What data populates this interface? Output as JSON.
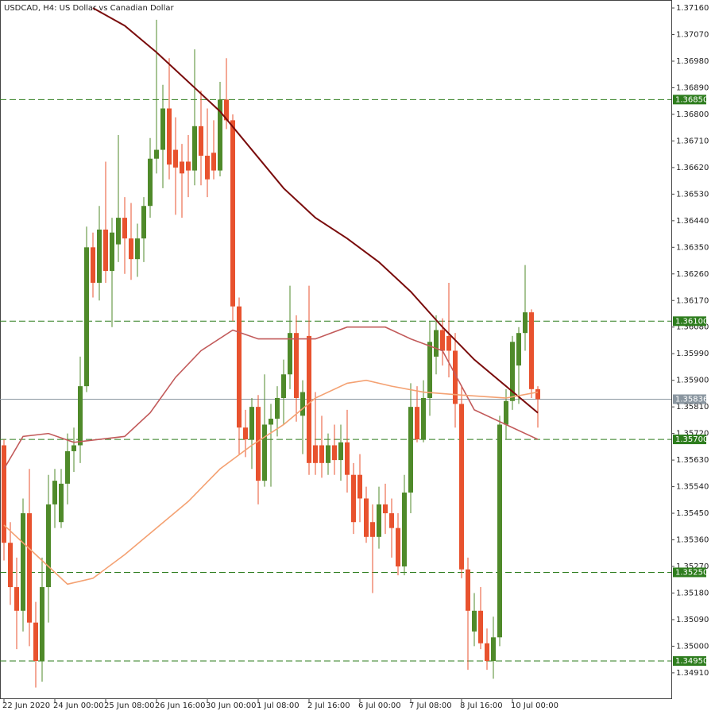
{
  "chart_data": {
    "type": "candlestick",
    "title": "USDCAD, H4:  US Dollar vs Canadian Dollar",
    "up_color": "#4f8a2a",
    "down_color": "#e8522e",
    "open": [
      1.3568,
      1.3535,
      1.352,
      1.3512,
      1.3545,
      1.3508,
      1.3495,
      1.352,
      1.3548,
      1.3542,
      1.3555,
      1.3566,
      1.3568,
      1.3588,
      1.3635,
      1.3623,
      1.3641,
      1.3627,
      1.3636,
      1.3645,
      1.3638,
      1.3631,
      1.3638,
      1.3649,
      1.3665,
      1.3668,
      1.3682,
      1.3668,
      1.3664,
      1.3664,
      1.3661,
      1.3676,
      1.3666,
      1.3667,
      1.3661,
      1.3685,
      1.3678,
      1.3615,
      1.3574,
      1.357,
      1.3581,
      1.3556,
      1.3575,
      1.3577,
      1.3584,
      1.3592,
      1.3606,
      1.3578,
      1.3605,
      1.3568,
      1.3568,
      1.3562,
      1.3568,
      1.3563,
      1.3569,
      1.3558,
      1.3558,
      1.355,
      1.3542,
      1.3537,
      1.3548,
      1.3545,
      1.354,
      1.3527,
      1.3552,
      1.3581,
      1.357,
      1.3584,
      1.3598,
      1.3607,
      1.3605,
      1.36,
      1.3582,
      1.3526,
      1.3505,
      1.3512,
      1.3501,
      1.3495,
      1.3503,
      1.3575,
      1.3583,
      1.3595,
      1.3606,
      1.3613,
      1.3587
    ],
    "high": [
      1.357,
      1.3542,
      1.353,
      1.355,
      1.356,
      1.3515,
      1.353,
      1.3558,
      1.356,
      1.356,
      1.3572,
      1.3574,
      1.3598,
      1.3642,
      1.364,
      1.3649,
      1.3664,
      1.3645,
      1.3673,
      1.3652,
      1.365,
      1.3643,
      1.3652,
      1.3672,
      1.3712,
      1.369,
      1.3699,
      1.3679,
      1.367,
      1.3673,
      1.3702,
      1.3688,
      1.3682,
      1.3678,
      1.3691,
      1.3699,
      1.368,
      1.3618,
      1.358,
      1.3584,
      1.3585,
      1.3592,
      1.3582,
      1.3588,
      1.3597,
      1.3622,
      1.3612,
      1.359,
      1.3622,
      1.3586,
      1.3578,
      1.3572,
      1.3575,
      1.3575,
      1.358,
      1.3562,
      1.3565,
      1.3554,
      1.3548,
      1.3554,
      1.3555,
      1.355,
      1.3545,
      1.3558,
      1.3589,
      1.3588,
      1.359,
      1.361,
      1.3612,
      1.3611,
      1.3623,
      1.3606,
      1.3588,
      1.353,
      1.3518,
      1.352,
      1.3506,
      1.351,
      1.3578,
      1.3587,
      1.3605,
      1.3608,
      1.3629,
      1.3614,
      1.3588
    ],
    "low": [
      1.3529,
      1.3514,
      1.3499,
      1.3505,
      1.35,
      1.3486,
      1.3488,
      1.3508,
      1.354,
      1.354,
      1.3548,
      1.3559,
      1.3562,
      1.3586,
      1.3618,
      1.3617,
      1.3623,
      1.3608,
      1.363,
      1.3626,
      1.3624,
      1.3625,
      1.363,
      1.3645,
      1.366,
      1.3655,
      1.3658,
      1.3646,
      1.3645,
      1.3652,
      1.3656,
      1.3656,
      1.3652,
      1.3658,
      1.3659,
      1.3675,
      1.361,
      1.3565,
      1.3564,
      1.356,
      1.3548,
      1.3554,
      1.3554,
      1.3571,
      1.3575,
      1.3587,
      1.3576,
      1.3565,
      1.3558,
      1.3558,
      1.3557,
      1.3558,
      1.3558,
      1.3556,
      1.3552,
      1.3538,
      1.3542,
      1.3535,
      1.3518,
      1.3533,
      1.3538,
      1.353,
      1.3524,
      1.3524,
      1.3545,
      1.3569,
      1.3569,
      1.3578,
      1.3592,
      1.3595,
      1.3591,
      1.3574,
      1.3523,
      1.3492,
      1.35,
      1.3499,
      1.3492,
      1.3489,
      1.35,
      1.357,
      1.358,
      1.3582,
      1.36,
      1.3584,
      1.3574
    ],
    "close": [
      1.3535,
      1.352,
      1.3512,
      1.3545,
      1.3508,
      1.3495,
      1.352,
      1.3548,
      1.3556,
      1.3555,
      1.3566,
      1.3568,
      1.3588,
      1.3635,
      1.3623,
      1.3641,
      1.3627,
      1.364,
      1.3645,
      1.3638,
      1.3631,
      1.3638,
      1.3649,
      1.3665,
      1.3668,
      1.3682,
      1.3663,
      1.3662,
      1.366,
      1.3661,
      1.3676,
      1.3666,
      1.3658,
      1.3661,
      1.3685,
      1.3678,
      1.3615,
      1.3574,
      1.357,
      1.3581,
      1.3556,
      1.3575,
      1.3577,
      1.3584,
      1.3592,
      1.3606,
      1.3584,
      1.3586,
      1.3562,
      1.3562,
      1.3562,
      1.3568,
      1.3563,
      1.3569,
      1.3558,
      1.3542,
      1.355,
      1.3537,
      1.3537,
      1.3548,
      1.3545,
      1.354,
      1.3527,
      1.3552,
      1.3581,
      1.357,
      1.3584,
      1.3603,
      1.3607,
      1.36,
      1.36,
      1.3582,
      1.3526,
      1.3512,
      1.3512,
      1.3501,
      1.3495,
      1.3503,
      1.3575,
      1.3583,
      1.3603,
      1.3606,
      1.3613,
      1.3587,
      1.35836
    ],
    "moving_averages": [
      {
        "color": "#7a0c0c",
        "x": [
          14,
          19,
          24,
          29,
          34,
          39,
          44,
          49,
          54,
          59,
          64,
          69,
          74,
          79,
          84
        ],
        "values": [
          1.3716,
          1.371,
          1.3701,
          1.3691,
          1.3681,
          1.3668,
          1.3655,
          1.3645,
          1.3638,
          1.363,
          1.362,
          1.3608,
          1.3597,
          1.3588,
          1.3579
        ]
      },
      {
        "color": "#c25a5a",
        "x": [
          0,
          3,
          7,
          11,
          19,
          23,
          27,
          31,
          36,
          40,
          44,
          49,
          54,
          60,
          64,
          69,
          74,
          79,
          84
        ],
        "values": [
          1.356,
          1.3571,
          1.3572,
          1.3569,
          1.3571,
          1.3579,
          1.3591,
          1.36,
          1.3607,
          1.3604,
          1.3604,
          1.3604,
          1.3608,
          1.3608,
          1.3604,
          1.36,
          1.358,
          1.3575,
          1.357
        ]
      },
      {
        "color": "#f4a172",
        "x": [
          0,
          5,
          10,
          14,
          19,
          24,
          29,
          34,
          39,
          44,
          49,
          54,
          57,
          61,
          66,
          72,
          79,
          84
        ],
        "values": [
          1.3541,
          1.3531,
          1.3521,
          1.3523,
          1.3531,
          1.354,
          1.3549,
          1.356,
          1.3568,
          1.3575,
          1.3584,
          1.3589,
          1.359,
          1.3588,
          1.3586,
          1.3585,
          1.3584,
          1.3586
        ]
      }
    ],
    "levels": [
      {
        "value": 1.3685,
        "label": "1.36850"
      },
      {
        "value": 1.361,
        "label": "1.36100"
      },
      {
        "value": 1.357,
        "label": "1.35700"
      },
      {
        "value": 1.3525,
        "label": "1.35250"
      },
      {
        "value": 1.3495,
        "label": "1.34950"
      }
    ],
    "level_color": "#2e7d1e",
    "current_price": {
      "value": 1.35836,
      "label": "1.35836"
    },
    "xlim": [
      -0.625,
      105
    ],
    "ylim": [
      1.34821,
      1.37187
    ],
    "yticks": [
      {
        "value": 1.3716,
        "label": "1.37160"
      },
      {
        "value": 1.3707,
        "label": "1.37070"
      },
      {
        "value": 1.3698,
        "label": "1.36980"
      },
      {
        "value": 1.3689,
        "label": "1.36890"
      },
      {
        "value": 1.368,
        "label": "1.36800"
      },
      {
        "value": 1.3671,
        "label": "1.36710"
      },
      {
        "value": 1.3662,
        "label": "1.36620"
      },
      {
        "value": 1.3653,
        "label": "1.36530"
      },
      {
        "value": 1.3644,
        "label": "1.36440"
      },
      {
        "value": 1.3635,
        "label": "1.36350"
      },
      {
        "value": 1.3626,
        "label": "1.36260"
      },
      {
        "value": 1.3617,
        "label": "1.36170"
      },
      {
        "value": 1.3608,
        "label": "1.36080"
      },
      {
        "value": 1.3599,
        "label": "1.35990"
      },
      {
        "value": 1.359,
        "label": "1.35900"
      },
      {
        "value": 1.3581,
        "label": "1.35810"
      },
      {
        "value": 1.3572,
        "label": "1.35720"
      },
      {
        "value": 1.3563,
        "label": "1.35630"
      },
      {
        "value": 1.3554,
        "label": "1.35540"
      },
      {
        "value": 1.3545,
        "label": "1.35450"
      },
      {
        "value": 1.3536,
        "label": "1.35360"
      },
      {
        "value": 1.3527,
        "label": "1.35270"
      },
      {
        "value": 1.3518,
        "label": "1.35180"
      },
      {
        "value": 1.3509,
        "label": "1.35090"
      },
      {
        "value": 1.35,
        "label": "1.35000"
      },
      {
        "value": 1.3491,
        "label": "1.34910"
      }
    ],
    "xticks": [
      {
        "value": 0,
        "label": "22 Jun 2020"
      },
      {
        "value": 8,
        "label": "24 Jun 00:00"
      },
      {
        "value": 16,
        "label": "25 Jun 08:00"
      },
      {
        "value": 24,
        "label": "26 Jun 16:00"
      },
      {
        "value": 32,
        "label": "30 Jun 00:00"
      },
      {
        "value": 40,
        "label": "1 Jul 08:00"
      },
      {
        "value": 48,
        "label": "2 Jul 16:00"
      },
      {
        "value": 56,
        "label": "6 Jul 00:00"
      },
      {
        "value": 64,
        "label": "7 Jul 08:00"
      },
      {
        "value": 72,
        "label": "8 Jul 16:00"
      },
      {
        "value": 80,
        "label": "10 Jul 00:00"
      }
    ]
  }
}
